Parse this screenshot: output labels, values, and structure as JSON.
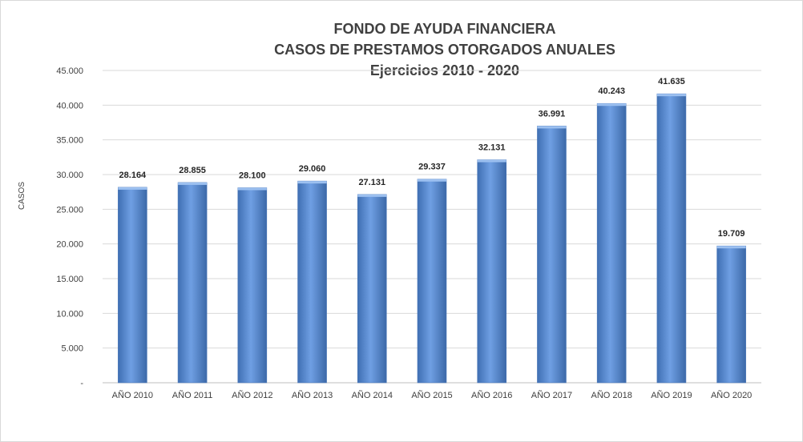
{
  "chart_data": {
    "type": "bar",
    "title": [
      "FONDO DE AYUDA FINANCIERA",
      "CASOS DE PRESTAMOS  OTORGADOS  ANUALES",
      "Ejercicios  2010 - 2020"
    ],
    "ylabel": "CASOS",
    "xlabel": "",
    "categories": [
      "AÑO 2010",
      "AÑO 2011",
      "AÑO 2012",
      "AÑO 2013",
      "AÑO 2014",
      "AÑO 2015",
      "AÑO 2016",
      "AÑO 2017",
      "AÑO 2018",
      "AÑO 2019",
      "AÑO 2020"
    ],
    "values": [
      28164,
      28855,
      28100,
      29060,
      27131,
      29337,
      32131,
      36991,
      40243,
      41635,
      19709
    ],
    "data_labels": [
      "28.164",
      "28.855",
      "28.100",
      "29.060",
      "27.131",
      "29.337",
      "32.131",
      "36.991",
      "40.243",
      "41.635",
      "19.709"
    ],
    "yticks": [
      "-",
      "5.000",
      "10.000",
      "15.000",
      "20.000",
      "25.000",
      "30.000",
      "35.000",
      "40.000",
      "45.000"
    ],
    "ylim": [
      0,
      45000
    ],
    "grid": true,
    "legend": "none",
    "bar_color": "#5b8dd6"
  }
}
